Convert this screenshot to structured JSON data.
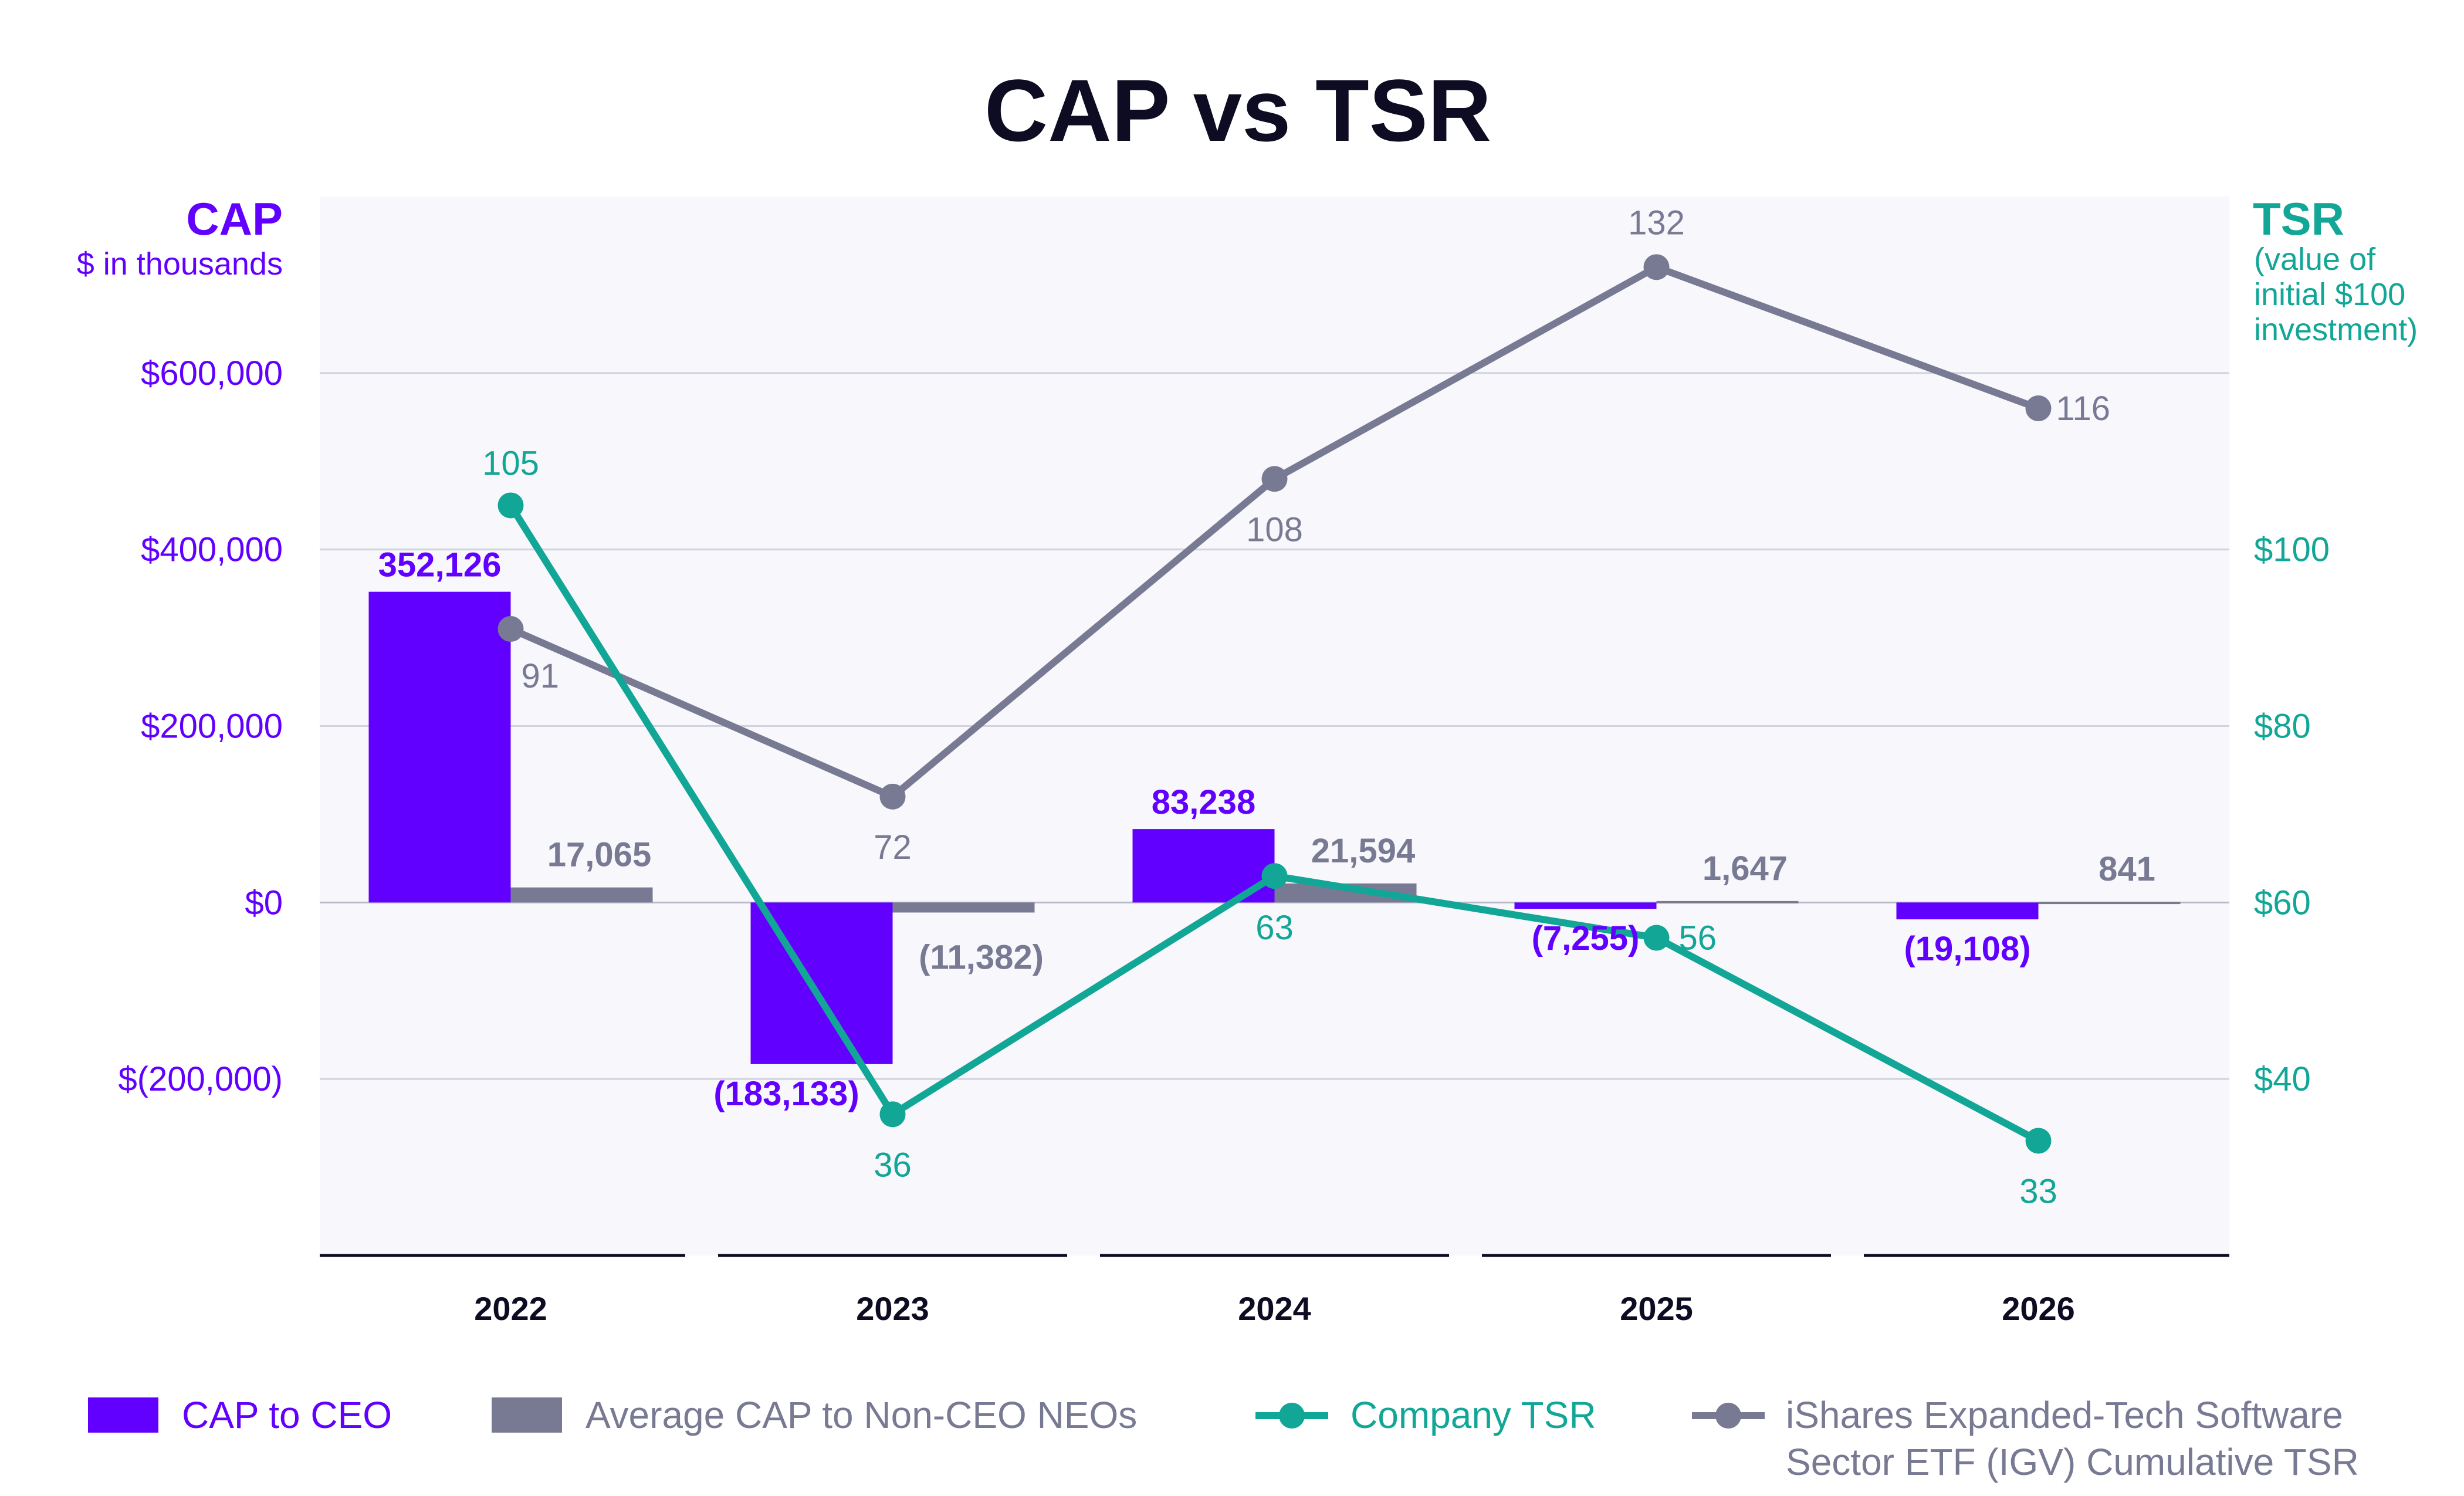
{
  "chart_data": {
    "type": "bar",
    "title": "CAP vs TSR",
    "categories": [
      "2022",
      "2023",
      "2024",
      "2025",
      "2026"
    ],
    "left_axis": {
      "title": "CAP",
      "subtitle": "$ in thousands",
      "ticks": [
        {
          "value": 600000,
          "label": "$600,000"
        },
        {
          "value": 400000,
          "label": "$400,000"
        },
        {
          "value": 200000,
          "label": "$200,000"
        },
        {
          "value": 0,
          "label": "$0"
        },
        {
          "value": -200000,
          "label": "$(200,000)"
        }
      ],
      "range": [
        -400000,
        800000
      ]
    },
    "right_axis": {
      "title": "TSR",
      "subtitle_lines": [
        "(value of",
        "initial $100",
        "investment)"
      ],
      "ticks": [
        {
          "value": 100,
          "label": "$100"
        },
        {
          "value": 80,
          "label": "$80"
        },
        {
          "value": 60,
          "label": "$60"
        },
        {
          "value": 40,
          "label": "$40"
        }
      ],
      "range": [
        20,
        140
      ]
    },
    "grid": true,
    "series": [
      {
        "name": "CAP to CEO",
        "kind": "bar",
        "axis": "left",
        "color": "#6200ff",
        "values": [
          352126,
          -183133,
          83238,
          -7255,
          -19108
        ],
        "labels": [
          "352,126",
          "(183,133)",
          "83,238",
          "(7,255)",
          "(19,108)"
        ]
      },
      {
        "name": "Average CAP to Non-CEO NEOs",
        "kind": "bar",
        "axis": "left",
        "color": "#787a93",
        "values": [
          17065,
          -11382,
          21594,
          1647,
          841
        ],
        "labels": [
          "17,065",
          "(11,382)",
          "21,594",
          "1,647",
          "841"
        ]
      },
      {
        "name": "Company TSR",
        "kind": "line",
        "axis": "right",
        "color": "#12a696",
        "values": [
          105,
          36,
          63,
          56,
          33
        ],
        "labels": [
          "105",
          "36",
          "63",
          "56",
          "33"
        ]
      },
      {
        "name_lines": [
          "iShares Expanded-Tech Software",
          "Sector ETF (IGV) Cumulative TSR"
        ],
        "kind": "line",
        "axis": "right",
        "color": "#787a93",
        "values": [
          91,
          72,
          108,
          132,
          116
        ],
        "labels": [
          "91",
          "72",
          "108",
          "132",
          "116"
        ]
      }
    ],
    "legend_position": "bottom"
  }
}
